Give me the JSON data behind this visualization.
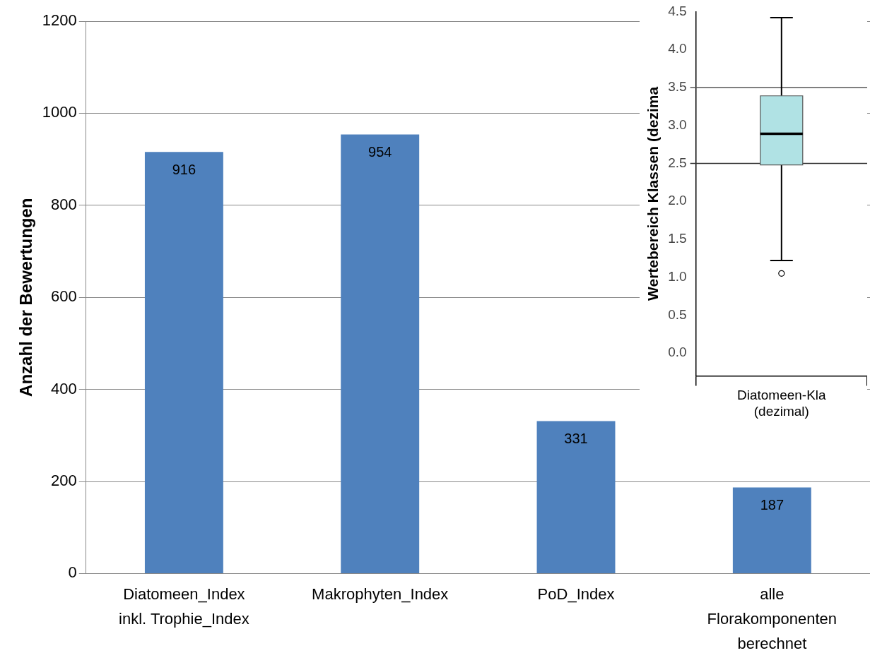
{
  "chart_data": [
    {
      "type": "bar",
      "ylabel": "Anzahl der Bewertungen",
      "categories": [
        "Diatomeen_Index\ninkl. Trophie_Index",
        "Makrophyten_Index",
        "PoD_Index",
        "alle\nFlorakomponenten\nberechnet"
      ],
      "values": [
        916,
        954,
        331,
        187
      ],
      "color": "#4f81bd",
      "ylim": [
        0,
        1200
      ],
      "yticks": [
        0,
        200,
        400,
        600,
        800,
        1000,
        1200
      ],
      "grid": "y",
      "data_labels": true
    },
    {
      "type": "box",
      "ylabel": "Wertebereich Klassen (dezima",
      "categories": [
        "Diatomeen-Kla\n(dezimal)"
      ],
      "color": "#b0e2e4",
      "boxes": [
        {
          "low": 1.22,
          "q1": 2.48,
          "median": 2.89,
          "q3": 3.39,
          "high": 4.42,
          "outliers": [
            1.05
          ]
        }
      ],
      "ylim": [
        -0.3,
        4.5
      ],
      "yticks": [
        {
          "value": 0,
          "label": "0.0"
        },
        {
          "value": 0.5,
          "label": "0.5"
        },
        {
          "value": 1,
          "label": "1.0"
        },
        {
          "value": 1.5,
          "label": "1.5"
        },
        {
          "value": 2,
          "label": "2.0"
        },
        {
          "value": 2.5,
          "label": "2.5"
        },
        {
          "value": 3,
          "label": "3.0"
        },
        {
          "value": 3.5,
          "label": "3.5"
        },
        {
          "value": 4,
          "label": "4.0"
        },
        {
          "value": 4.5,
          "label": "4.5"
        }
      ],
      "grid": false,
      "ref_lines": [
        {
          "axis": "y",
          "value": 2.5,
          "color": "#333333"
        },
        {
          "axis": "y",
          "value": 3.5,
          "color": "#555555"
        }
      ]
    }
  ]
}
